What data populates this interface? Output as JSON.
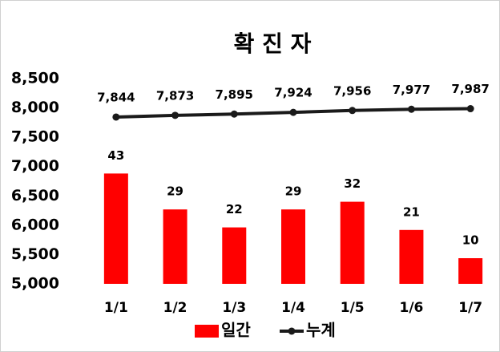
{
  "chart_data": {
    "type": "bar-line",
    "title": "확 진 자",
    "categories": [
      "1/1",
      "1/2",
      "1/3",
      "1/4",
      "1/5",
      "1/6",
      "1/7"
    ],
    "ylim": [
      5000,
      8500
    ],
    "yticks": [
      {
        "value": 5000,
        "label": "5,000"
      },
      {
        "value": 5500,
        "label": "5,500"
      },
      {
        "value": 6000,
        "label": "6,000"
      },
      {
        "value": 6500,
        "label": "6,500"
      },
      {
        "value": 7000,
        "label": "7,000"
      },
      {
        "value": 7500,
        "label": "7,500"
      },
      {
        "value": 8000,
        "label": "8,000"
      },
      {
        "value": 8500,
        "label": "8,500"
      }
    ],
    "y2lim": [
      0,
      80
    ],
    "legend": "bottom",
    "series": [
      {
        "name": "일간",
        "type": "bar",
        "axis": "y2",
        "color": "#ff0000",
        "values": [
          43,
          29,
          22,
          29,
          32,
          21,
          10
        ]
      },
      {
        "name": "누계",
        "type": "line",
        "color": "#1a1a1a",
        "values": [
          7844,
          7873,
          7895,
          7924,
          7956,
          7977,
          7987
        ],
        "value_labels": [
          "7,844",
          "7,873",
          "7,895",
          "7,924",
          "7,956",
          "7,977",
          "7,987"
        ]
      }
    ]
  }
}
